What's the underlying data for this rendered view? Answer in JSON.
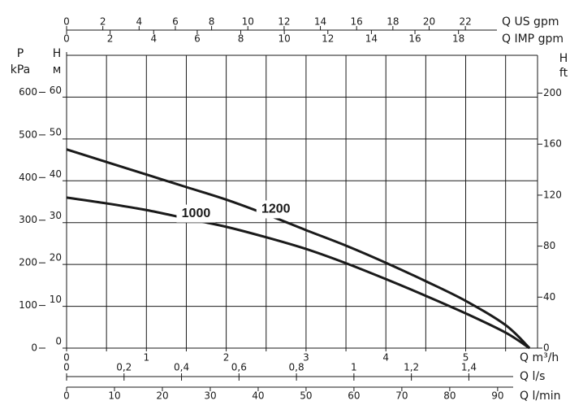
{
  "chart_data": {
    "type": "line",
    "x": [
      0,
      0.5,
      1,
      1.5,
      2,
      2.5,
      3,
      3.5,
      4,
      4.5,
      5,
      5.5,
      5.8
    ],
    "xlim": [
      0,
      5.9
    ],
    "xticks": [
      0,
      1,
      2,
      3,
      4,
      5
    ],
    "xgrid": [
      0,
      0.5,
      1,
      1.5,
      2,
      2.5,
      3,
      3.5,
      4,
      4.5,
      5,
      5.5
    ],
    "xlabel": "Q m³/h",
    "ylim": [
      0,
      70
    ],
    "yticks": [
      0,
      10,
      20,
      30,
      40,
      50,
      60
    ],
    "ylabel": [
      "H",
      "м"
    ],
    "grid": true,
    "series": [
      {
        "name": "1200",
        "color": "#1a1a1a",
        "values": [
          47.5,
          44.5,
          41.5,
          38.5,
          35.5,
          32,
          28.2,
          24.5,
          20.4,
          16,
          11.3,
          5.5,
          0
        ]
      },
      {
        "name": "1000",
        "color": "#1a1a1a",
        "values": [
          36,
          34.6,
          33,
          31,
          29,
          26.5,
          23.7,
          20.3,
          16.5,
          12.5,
          8.3,
          3.7,
          0
        ]
      }
    ],
    "pressure_axis": {
      "label": [
        "P",
        "kPa"
      ],
      "lim": [
        0,
        686.7
      ],
      "ticks": [
        0,
        100,
        200,
        300,
        400,
        500,
        600
      ]
    },
    "feet_axis": {
      "label": [
        "H",
        "ft"
      ],
      "lim": [
        0,
        229.7
      ],
      "ticks": [
        0,
        40,
        80,
        120,
        160,
        200
      ]
    },
    "us_gpm_axis": {
      "label": "Q US gpm",
      "lim": [
        0,
        25.98
      ],
      "ticks": [
        0,
        2,
        4,
        6,
        8,
        10,
        12,
        14,
        16,
        18,
        20,
        22
      ]
    },
    "imp_gpm_axis": {
      "label": "Q IMP gpm",
      "lim": [
        0,
        21.63
      ],
      "ticks": [
        0,
        2,
        4,
        6,
        8,
        10,
        12,
        14,
        16,
        18
      ]
    },
    "ls_axis": {
      "label": "Q l/s",
      "lim": [
        0,
        1.639
      ],
      "ticks": [
        0,
        {
          "value": 0.2,
          "label": "0,2"
        },
        {
          "value": 0.4,
          "label": "0,4"
        },
        {
          "value": 0.6,
          "label": "0,6"
        },
        {
          "value": 0.8,
          "label": "0,8"
        },
        1,
        {
          "value": 1.2,
          "label": "1,2"
        },
        {
          "value": 1.4,
          "label": "1,4"
        }
      ]
    },
    "lmin_axis": {
      "label": "Q l/min",
      "lim": [
        0,
        98.33
      ],
      "ticks": [
        0,
        10,
        20,
        30,
        40,
        50,
        60,
        70,
        80,
        90
      ]
    }
  }
}
